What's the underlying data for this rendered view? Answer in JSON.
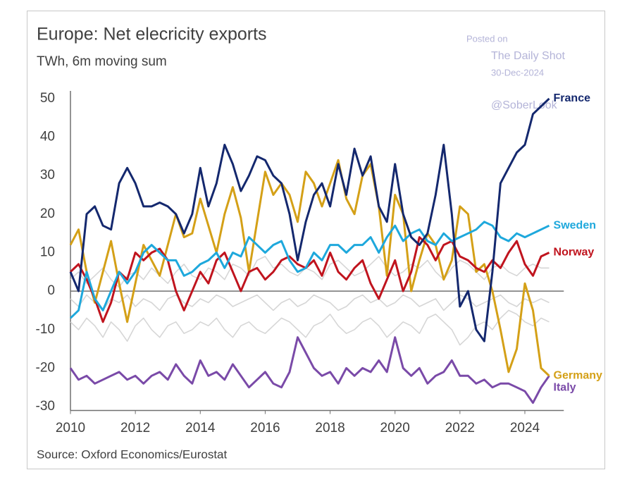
{
  "chart_data": {
    "type": "line",
    "title": "Europe: Net elecricity exports",
    "subtitle": "TWh, 6m moving sum",
    "source": "Source: Oxford Economics/Eurostat",
    "watermark": [
      "Posted on",
      "The Daily Shot",
      "30-Dec-2024",
      "@SoberLook"
    ],
    "x": [
      2010,
      2010.25,
      2010.5,
      2010.75,
      2011,
      2011.25,
      2011.5,
      2011.75,
      2012,
      2012.25,
      2012.5,
      2012.75,
      2013,
      2013.25,
      2013.5,
      2013.75,
      2014,
      2014.25,
      2014.5,
      2014.75,
      2015,
      2015.25,
      2015.5,
      2015.75,
      2016,
      2016.25,
      2016.5,
      2016.75,
      2017,
      2017.25,
      2017.5,
      2017.75,
      2018,
      2018.25,
      2018.5,
      2018.75,
      2019,
      2019.25,
      2019.5,
      2019.75,
      2020,
      2020.25,
      2020.5,
      2020.75,
      2021,
      2021.25,
      2021.5,
      2021.75,
      2022,
      2022.25,
      2022.5,
      2022.75,
      2023,
      2023.25,
      2023.5,
      2023.75,
      2024,
      2024.25,
      2024.5,
      2024.75
    ],
    "xlim": [
      2010,
      2025.2
    ],
    "xticks": [
      2010,
      2012,
      2014,
      2016,
      2018,
      2020,
      2022,
      2024
    ],
    "ylim": [
      -31,
      52
    ],
    "yticks": [
      -30,
      -20,
      -10,
      0,
      10,
      20,
      30,
      40,
      50
    ],
    "series": [
      {
        "name": "France",
        "color": "#14286e",
        "values": [
          5,
          0,
          20,
          22,
          17,
          16,
          28,
          32,
          28,
          22,
          22,
          23,
          22,
          20,
          15,
          20,
          32,
          22,
          28,
          38,
          33,
          26,
          30,
          35,
          34,
          30,
          28,
          20,
          8,
          18,
          25,
          28,
          22,
          33,
          25,
          37,
          30,
          35,
          22,
          18,
          33,
          20,
          14,
          12,
          15,
          25,
          38,
          20,
          -4,
          0,
          -10,
          -13,
          5,
          28,
          32,
          36,
          38,
          46,
          48,
          50
        ]
      },
      {
        "name": "Sweden",
        "color": "#1ea8dc",
        "values": [
          -7,
          -5,
          5,
          -2,
          -5,
          0,
          5,
          2,
          5,
          10,
          12,
          10,
          8,
          8,
          4,
          5,
          7,
          8,
          10,
          6,
          10,
          9,
          14,
          12,
          10,
          12,
          13,
          8,
          5,
          6,
          10,
          8,
          12,
          12,
          10,
          12,
          12,
          14,
          10,
          14,
          17,
          13,
          15,
          16,
          13,
          12,
          15,
          13,
          14,
          15,
          16,
          18,
          17,
          14,
          13,
          15,
          14,
          15,
          16,
          17
        ]
      },
      {
        "name": "Norway",
        "color": "#c0141e",
        "values": [
          5,
          7,
          3,
          -2,
          -8,
          -3,
          5,
          3,
          10,
          8,
          10,
          11,
          8,
          0,
          -5,
          0,
          5,
          2,
          8,
          10,
          5,
          0,
          5,
          6,
          3,
          5,
          8,
          9,
          7,
          6,
          8,
          4,
          10,
          5,
          3,
          6,
          8,
          2,
          -2,
          3,
          8,
          0,
          5,
          14,
          12,
          8,
          12,
          13,
          9,
          8,
          6,
          5,
          8,
          6,
          10,
          13,
          7,
          4,
          9,
          10
        ]
      },
      {
        "name": "Germany",
        "color": "#d4a017",
        "values": [
          12,
          16,
          5,
          -3,
          5,
          13,
          2,
          -8,
          2,
          12,
          8,
          4,
          12,
          20,
          14,
          15,
          24,
          17,
          10,
          20,
          27,
          19,
          5,
          18,
          31,
          25,
          28,
          25,
          18,
          31,
          28,
          22,
          28,
          34,
          24,
          20,
          30,
          33,
          22,
          4,
          25,
          20,
          0,
          8,
          15,
          12,
          3,
          8,
          22,
          20,
          5,
          7,
          0,
          -10,
          -21,
          -15,
          2,
          -5,
          -20,
          -22
        ]
      },
      {
        "name": "Italy",
        "color": "#7a4aa8",
        "values": [
          -20,
          -23,
          -22,
          -24,
          -23,
          -22,
          -21,
          -23,
          -22,
          -24,
          -22,
          -21,
          -23,
          -19,
          -22,
          -24,
          -18,
          -22,
          -21,
          -23,
          -19,
          -22,
          -25,
          -23,
          -21,
          -24,
          -25,
          -21,
          -12,
          -16,
          -20,
          -22,
          -21,
          -24,
          -20,
          -22,
          -20,
          -21,
          -18,
          -21,
          -12,
          -20,
          -22,
          -20,
          -24,
          -22,
          -21,
          -18,
          -22,
          -22,
          -24,
          -23,
          -25,
          -24,
          -24,
          -25,
          -26,
          -29,
          -25,
          -22
        ]
      },
      {
        "color": "#d6d6d6",
        "values": [
          3,
          5,
          2,
          4,
          6,
          3,
          1,
          4,
          5,
          3,
          6,
          4,
          2,
          5,
          7,
          4,
          3,
          6,
          5,
          3,
          7,
          6,
          4,
          8,
          9,
          6,
          7,
          5,
          4,
          6,
          5,
          3,
          7,
          8,
          6,
          4,
          5,
          7,
          9,
          6,
          4,
          5,
          7,
          6,
          8,
          5,
          3,
          6,
          8,
          7,
          5,
          3,
          6,
          7,
          5,
          4,
          6,
          7,
          6,
          6
        ]
      },
      {
        "color": "#d6d6d6",
        "values": [
          -2,
          -4,
          -1,
          -3,
          -5,
          -2,
          -3,
          -1,
          -4,
          -2,
          -3,
          -5,
          -2,
          -1,
          -3,
          -4,
          -2,
          -3,
          -1,
          -2,
          -4,
          -3,
          -2,
          -1,
          -3,
          -5,
          -3,
          -2,
          -4,
          -3,
          -1,
          -2,
          -3,
          -5,
          -4,
          -2,
          -1,
          -3,
          -2,
          -4,
          -3,
          -1,
          -2,
          -4,
          -3,
          -2,
          -5,
          -3,
          -1,
          -2,
          -4,
          -3,
          -2,
          -1,
          -3,
          -4,
          -2,
          -3,
          -2,
          -3
        ]
      },
      {
        "color": "#d6d6d6",
        "values": [
          -8,
          -10,
          -7,
          -9,
          -12,
          -8,
          -10,
          -13,
          -9,
          -7,
          -10,
          -12,
          -9,
          -8,
          -11,
          -10,
          -8,
          -9,
          -7,
          -10,
          -12,
          -9,
          -8,
          -10,
          -11,
          -9,
          -7,
          -8,
          -10,
          -12,
          -9,
          -8,
          -6,
          -9,
          -11,
          -10,
          -8,
          -7,
          -9,
          -12,
          -10,
          -8,
          -9,
          -11,
          -7,
          -6,
          -8,
          -10,
          -14,
          -12,
          -9,
          -8,
          -10,
          -7,
          -5,
          -6,
          -8,
          -9,
          -7,
          -8
        ]
      }
    ]
  }
}
